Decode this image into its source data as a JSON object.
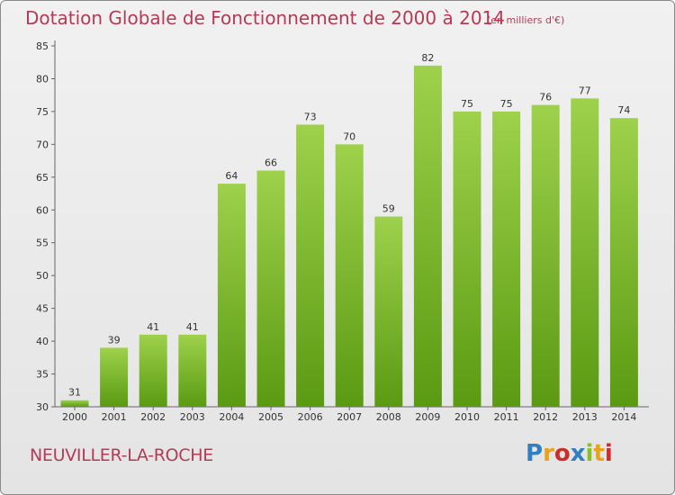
{
  "chart_data": {
    "type": "bar",
    "title": "Dotation Globale de Fonctionnement de 2000 à 2014",
    "subtitle": "(en milliers d'€)",
    "categories": [
      "2000",
      "2001",
      "2002",
      "2003",
      "2004",
      "2005",
      "2006",
      "2007",
      "2008",
      "2009",
      "2010",
      "2011",
      "2012",
      "2013",
      "2014"
    ],
    "values": [
      31,
      39,
      41,
      41,
      64,
      66,
      73,
      70,
      59,
      82,
      75,
      75,
      76,
      77,
      74
    ],
    "ylim": [
      30,
      85
    ],
    "yticks": [
      30,
      35,
      40,
      45,
      50,
      55,
      60,
      65,
      70,
      75,
      80,
      85
    ],
    "grid": false,
    "bar_color_top": "#9ed14c",
    "bar_color_bottom": "#5a9a12"
  },
  "footer": {
    "commune": "NEUVILLER-LA-ROCHE",
    "logo_letters": [
      "P",
      "r",
      "o",
      "x",
      "i",
      "t",
      "i"
    ],
    "logo_colors": [
      "#2f7fc1",
      "#e8a21c",
      "#c9302c",
      "#2f7fc1",
      "#8cbf26",
      "#e8a21c",
      "#c9302c"
    ]
  },
  "colors": {
    "title": "#b43a55",
    "axis": "#666666"
  }
}
